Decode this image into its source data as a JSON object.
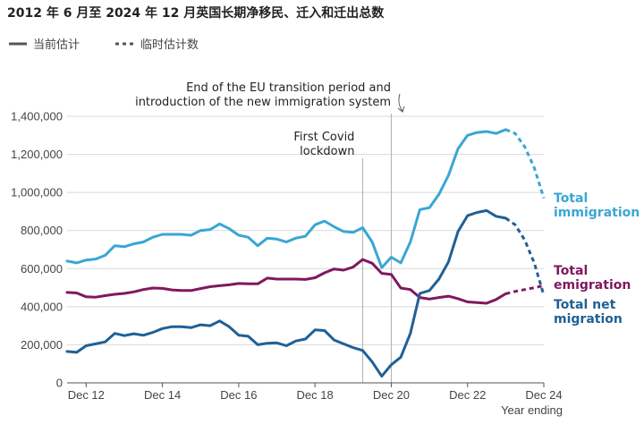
{
  "chart_data": {
    "type": "line",
    "title": "2012 年 6 月至 2024 年 12 月英国长期净移民、迁入和迁出总数",
    "legend": [
      {
        "label": "当前估计",
        "style": "solid"
      },
      {
        "label": "临时估计数",
        "style": "dashed"
      }
    ],
    "xlabel": "Year ending",
    "x_ticks": [
      "Dec 12",
      "Dec 14",
      "Dec 16",
      "Dec 18",
      "Dec 20",
      "Dec 22",
      "Dec 24"
    ],
    "y_ticks": [
      "0",
      "200,000",
      "400,000",
      "600,000",
      "800,000",
      "1,000,000",
      "1,200,000",
      "1,400,000"
    ],
    "ylim": [
      0,
      1400000
    ],
    "xlim": [
      2012.5,
      2025.0
    ],
    "grid": true,
    "annotations": [
      {
        "text": [
          "End of the EU transition period and",
          "introduction of the new immigration system"
        ],
        "x": 2021.0
      },
      {
        "text": [
          "First Covid",
          "lockdown"
        ],
        "x": 2020.25
      }
    ],
    "colors": {
      "immigration": "#3aa6d3",
      "emigration": "#80185f",
      "net": "#206095"
    },
    "series": [
      {
        "name": "Total immigration",
        "key": "immigration",
        "x": [
          2012.5,
          2012.75,
          2013,
          2013.25,
          2013.5,
          2013.75,
          2014,
          2014.25,
          2014.5,
          2014.75,
          2015,
          2015.25,
          2015.5,
          2015.75,
          2016,
          2016.25,
          2016.5,
          2016.75,
          2017,
          2017.25,
          2017.5,
          2017.75,
          2018,
          2018.25,
          2018.5,
          2018.75,
          2019,
          2019.25,
          2019.5,
          2019.75,
          2020,
          2020.25,
          2020.5,
          2020.75,
          2021,
          2021.25,
          2021.5,
          2021.75,
          2022,
          2022.25,
          2022.5,
          2022.75,
          2023,
          2023.25,
          2023.5,
          2023.75,
          2024,
          2024.25,
          2024.5,
          2024.75,
          2025
        ],
        "y": [
          640000,
          630000,
          645000,
          650000,
          670000,
          720000,
          715000,
          730000,
          740000,
          765000,
          780000,
          780000,
          780000,
          775000,
          800000,
          805000,
          835000,
          810000,
          775000,
          765000,
          720000,
          760000,
          755000,
          740000,
          760000,
          770000,
          830000,
          850000,
          820000,
          795000,
          790000,
          815000,
          740000,
          605000,
          660000,
          630000,
          740000,
          910000,
          920000,
          990000,
          1090000,
          1230000,
          1300000,
          1315000,
          1320000,
          1310000,
          1330000,
          1310000,
          1240000,
          1130000,
          970000
        ],
        "estimate_from": 2024.0
      },
      {
        "name": "Total emigration",
        "key": "emigration",
        "x": [
          2012.5,
          2012.75,
          2013,
          2013.25,
          2013.5,
          2013.75,
          2014,
          2014.25,
          2014.5,
          2014.75,
          2015,
          2015.25,
          2015.5,
          2015.75,
          2016,
          2016.25,
          2016.5,
          2016.75,
          2017,
          2017.25,
          2017.5,
          2017.75,
          2018,
          2018.25,
          2018.5,
          2018.75,
          2019,
          2019.25,
          2019.5,
          2019.75,
          2020,
          2020.25,
          2020.5,
          2020.75,
          2021,
          2021.25,
          2021.5,
          2021.75,
          2022,
          2022.25,
          2022.5,
          2022.75,
          2023,
          2023.25,
          2023.5,
          2023.75,
          2024,
          2024.25,
          2024.5,
          2024.75,
          2025
        ],
        "y": [
          475000,
          472000,
          452000,
          450000,
          458000,
          465000,
          470000,
          478000,
          490000,
          498000,
          496000,
          488000,
          485000,
          485000,
          495000,
          505000,
          510000,
          515000,
          522000,
          520000,
          520000,
          550000,
          545000,
          545000,
          545000,
          543000,
          552000,
          578000,
          598000,
          592000,
          608000,
          648000,
          628000,
          575000,
          570000,
          498000,
          490000,
          448000,
          440000,
          448000,
          455000,
          442000,
          425000,
          422000,
          418000,
          438000,
          468000,
          480000,
          490000,
          500000,
          510000
        ],
        "estimate_from": 2024.0
      },
      {
        "name": "Total net migration",
        "key": "net",
        "x": [
          2012.5,
          2012.75,
          2013,
          2013.25,
          2013.5,
          2013.75,
          2014,
          2014.25,
          2014.5,
          2014.75,
          2015,
          2015.25,
          2015.5,
          2015.75,
          2016,
          2016.25,
          2016.5,
          2016.75,
          2017,
          2017.25,
          2017.5,
          2017.75,
          2018,
          2018.25,
          2018.5,
          2018.75,
          2019,
          2019.25,
          2019.5,
          2019.75,
          2020,
          2020.25,
          2020.5,
          2020.75,
          2021,
          2021.25,
          2021.5,
          2021.75,
          2022,
          2022.25,
          2022.5,
          2022.75,
          2023,
          2023.25,
          2023.5,
          2023.75,
          2024,
          2024.25,
          2024.5,
          2024.75,
          2025
        ],
        "y": [
          165000,
          160000,
          195000,
          205000,
          215000,
          260000,
          248000,
          258000,
          250000,
          265000,
          285000,
          295000,
          295000,
          290000,
          305000,
          300000,
          325000,
          295000,
          250000,
          245000,
          200000,
          208000,
          210000,
          195000,
          220000,
          230000,
          278000,
          275000,
          225000,
          205000,
          185000,
          170000,
          110000,
          35000,
          95000,
          135000,
          260000,
          470000,
          485000,
          545000,
          635000,
          795000,
          878000,
          895000,
          905000,
          875000,
          865000,
          830000,
          750000,
          630000,
          460000
        ],
        "estimate_from": 2024.0
      }
    ]
  }
}
